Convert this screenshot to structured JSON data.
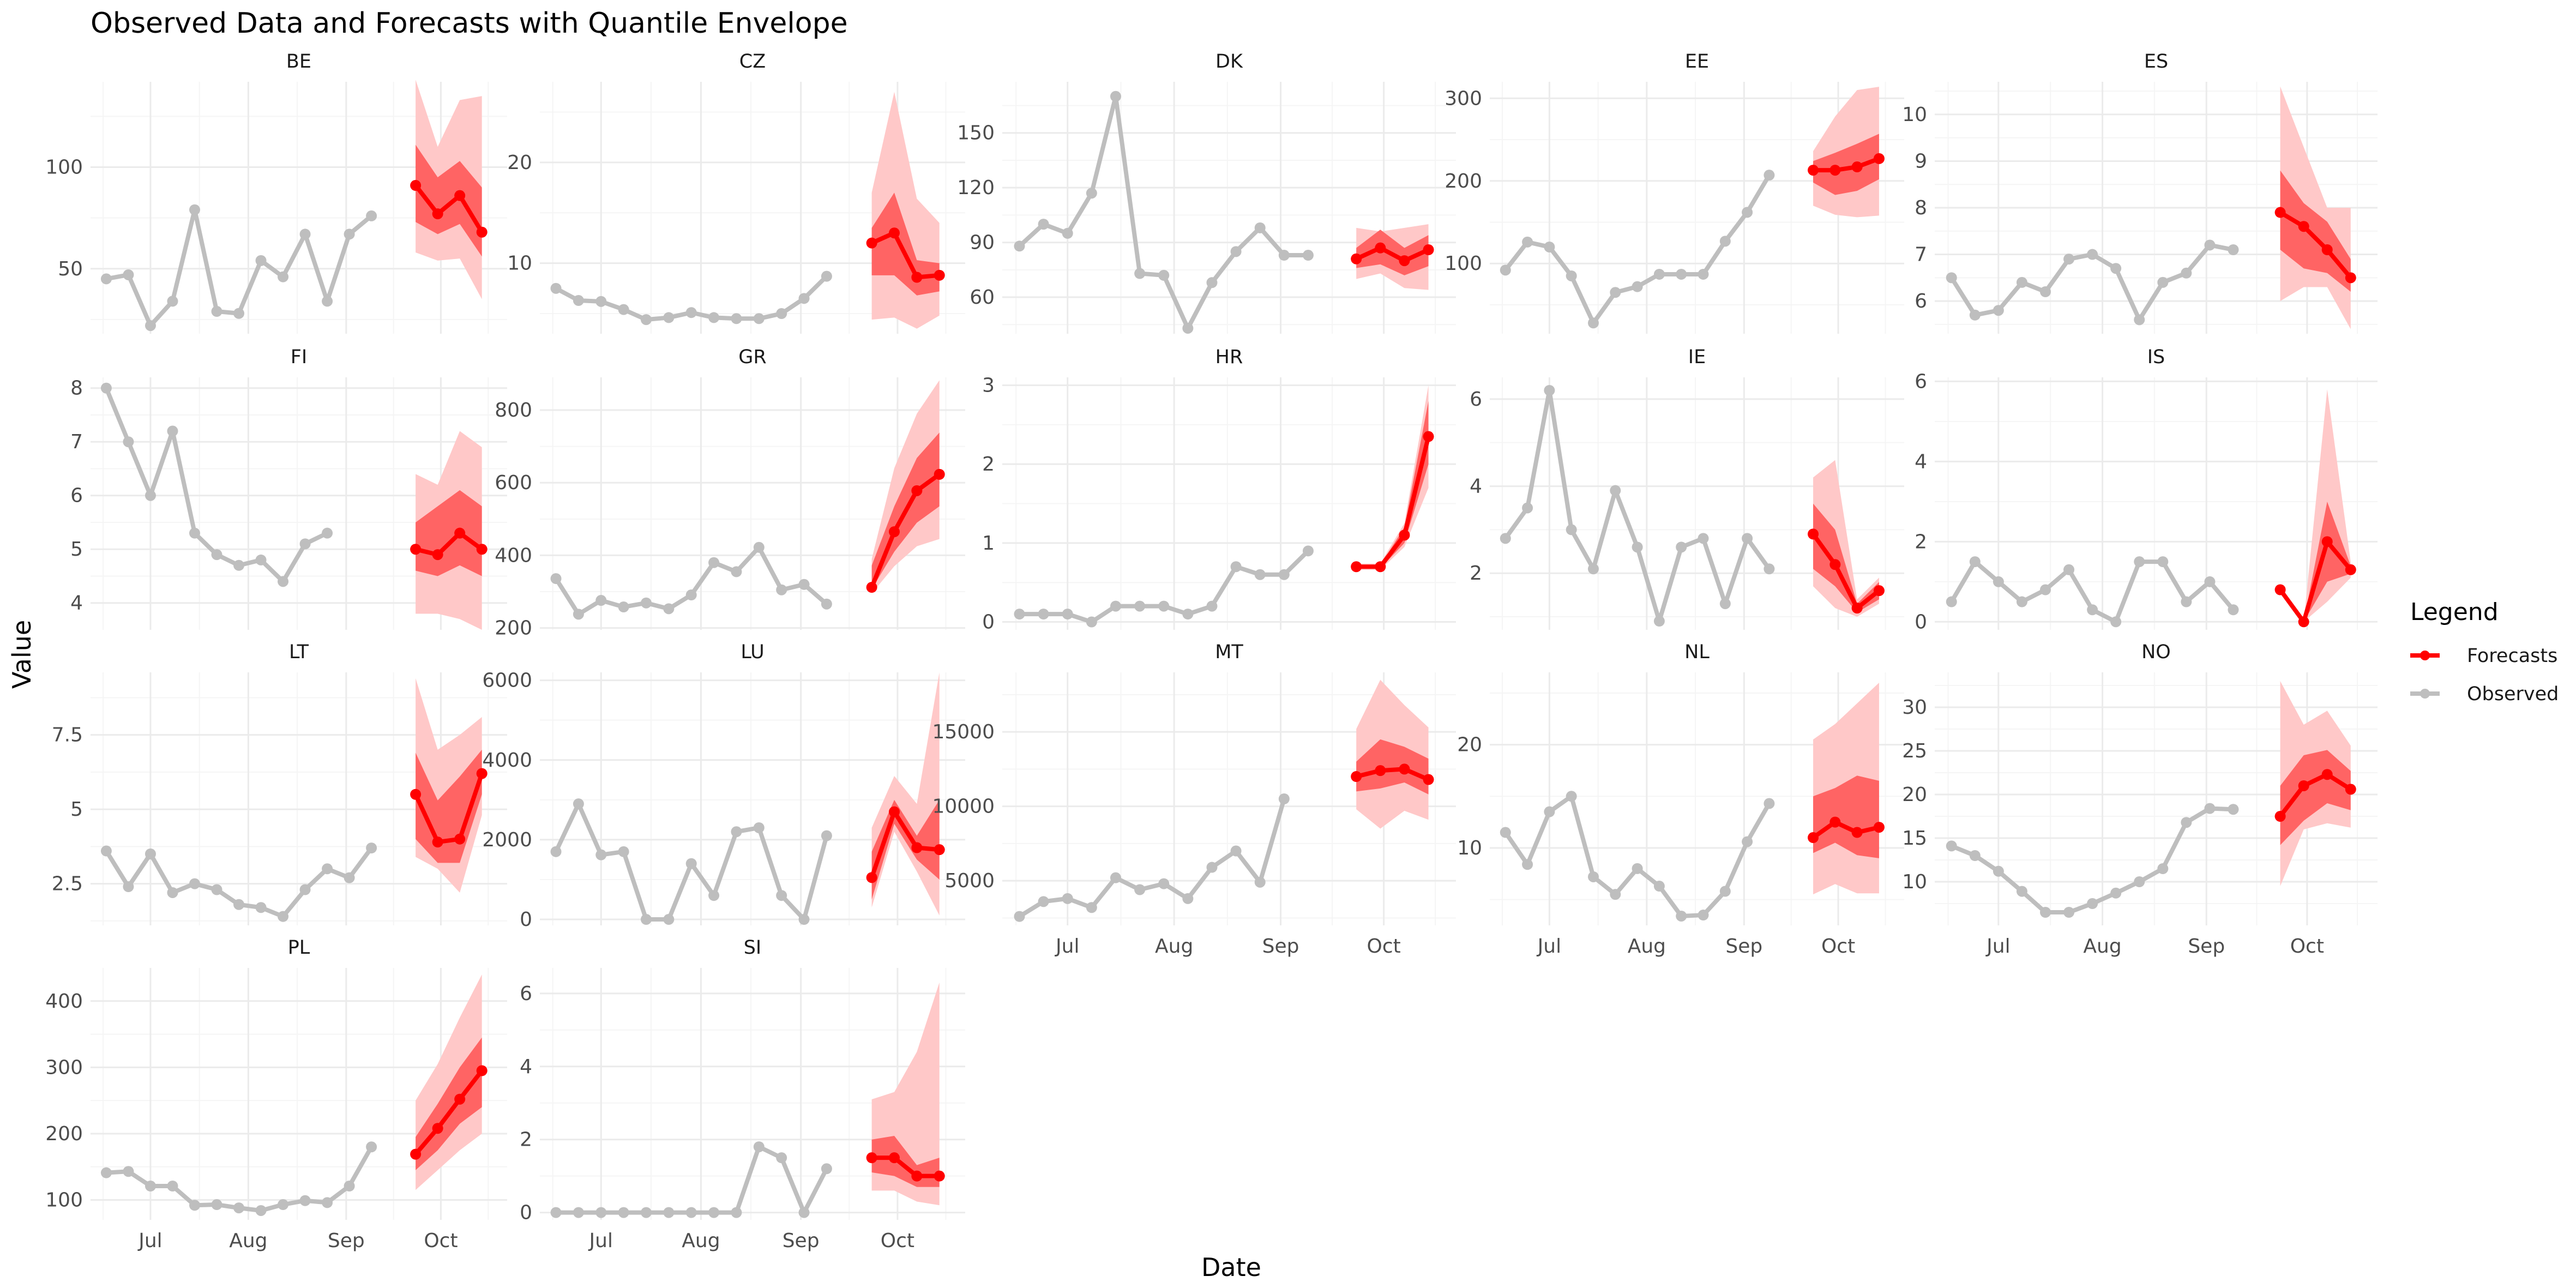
{
  "chart_data": {
    "type": "line",
    "title": "Observed Data and Forecasts with Quantile Envelope",
    "xlabel": "Date",
    "ylabel": "Value",
    "x_tick_labels": [
      "Jul",
      "Aug",
      "Sep",
      "Oct"
    ],
    "x_ticks": [
      "2023-07-01",
      "2023-08-01",
      "2023-09-01",
      "2023-10-01"
    ],
    "x_range": [
      "2023-06-12",
      "2023-10-22"
    ],
    "observed_dates": [
      "2023-06-17",
      "2023-06-24",
      "2023-07-01",
      "2023-07-08",
      "2023-07-15",
      "2023-07-22",
      "2023-07-29",
      "2023-08-05",
      "2023-08-12",
      "2023-08-19",
      "2023-08-26",
      "2023-09-02",
      "2023-09-09",
      "2023-09-16"
    ],
    "forecast_dates": [
      "2023-09-23",
      "2023-09-30",
      "2023-10-07",
      "2023-10-14"
    ],
    "legend": {
      "title": "Legend",
      "position": "right",
      "entries": [
        {
          "label": "Forecasts",
          "color": "#FF0000"
        },
        {
          "label": "Observed",
          "color": "#BEBEBE"
        }
      ]
    },
    "colors": {
      "observed": "#BEBEBE",
      "forecast": "#FF0000",
      "inner_band": "#FF6464",
      "outer_band": "#FFC8C8",
      "grid_major": "#EBEBEB",
      "grid_minor": "#F5F5F5"
    },
    "panels": [
      {
        "name": "BE",
        "ylim": [
          18,
          142
        ],
        "yticks": [
          50,
          100
        ],
        "observed": [
          45,
          47,
          22,
          34,
          79,
          29,
          28,
          54,
          46,
          67,
          34,
          67,
          76
        ],
        "forecast": {
          "median": [
            91,
            77,
            86,
            68
          ],
          "q_inner_low": [
            73,
            67,
            72,
            56
          ],
          "q_inner_high": [
            111,
            95,
            103,
            90
          ],
          "q_outer_low": [
            58,
            54,
            55,
            35
          ],
          "q_outer_high": [
            143,
            110,
            133,
            135
          ]
        }
      },
      {
        "name": "CZ",
        "ylim": [
          3,
          28
        ],
        "yticks": [
          10,
          20
        ],
        "observed": [
          7.5,
          6.3,
          6.2,
          5.4,
          4.4,
          4.6,
          5.1,
          4.6,
          4.5,
          4.5,
          5.0,
          6.5,
          8.7
        ],
        "forecast": {
          "median": [
            12,
            13,
            8.6,
            8.8
          ],
          "q_inner_low": [
            8.8,
            8.8,
            6.8,
            7.2
          ],
          "q_inner_high": [
            13.5,
            17,
            10.3,
            10
          ],
          "q_outer_low": [
            4.4,
            4.6,
            3.5,
            4.8
          ],
          "q_outer_high": [
            17,
            27,
            16.4,
            14
          ]
        }
      },
      {
        "name": "DK",
        "ylim": [
          40,
          178
        ],
        "yticks": [
          60,
          90,
          120,
          150
        ],
        "observed": [
          88,
          100,
          95,
          117,
          170,
          73,
          72,
          43,
          68,
          85,
          98,
          83,
          83
        ],
        "forecast": {
          "median": [
            81,
            87,
            80,
            86
          ],
          "q_inner_low": [
            76,
            78,
            72,
            77
          ],
          "q_inner_high": [
            87,
            97,
            87,
            94
          ],
          "q_outer_low": [
            70,
            73,
            65,
            64
          ],
          "q_outer_high": [
            98,
            96,
            98,
            100
          ]
        }
      },
      {
        "name": "EE",
        "ylim": [
          15,
          320
        ],
        "yticks": [
          100,
          200,
          300
        ],
        "observed": [
          92,
          126,
          120,
          85,
          28,
          65,
          72,
          87,
          87,
          87,
          127,
          162,
          207
        ],
        "forecast": {
          "median": [
            213,
            213,
            217,
            227
          ],
          "q_inner_low": [
            198,
            183,
            188,
            202
          ],
          "q_inner_high": [
            224,
            234,
            245,
            257
          ],
          "q_outer_low": [
            170,
            159,
            156,
            158
          ],
          "q_outer_high": [
            236,
            278,
            310,
            314
          ]
        }
      },
      {
        "name": "ES",
        "ylim": [
          5.3,
          10.7
        ],
        "yticks": [
          6,
          7,
          8,
          9,
          10
        ],
        "observed": [
          6.5,
          5.7,
          5.8,
          6.4,
          6.2,
          6.9,
          7.0,
          6.7,
          5.6,
          6.4,
          6.6,
          7.2,
          7.1
        ],
        "forecast": {
          "median": [
            7.9,
            7.6,
            7.1,
            6.5
          ],
          "q_inner_low": [
            7.1,
            6.7,
            6.6,
            6.2
          ],
          "q_inner_high": [
            8.8,
            8.1,
            7.7,
            6.9
          ],
          "q_outer_low": [
            6.0,
            6.3,
            6.3,
            5.4
          ],
          "q_outer_high": [
            10.6,
            9.3,
            8.0,
            8.0
          ]
        }
      },
      {
        "name": "FI",
        "ylim": [
          3.5,
          8.2
        ],
        "yticks": [
          4,
          5,
          6,
          7,
          8
        ],
        "observed": [
          8.0,
          7.0,
          6.0,
          7.2,
          5.3,
          4.9,
          4.7,
          4.8,
          4.4,
          5.1,
          5.3
        ],
        "forecast": {
          "median": [
            5.0,
            4.9,
            5.3,
            5.0
          ],
          "q_inner_low": [
            4.6,
            4.5,
            4.7,
            4.5
          ],
          "q_inner_high": [
            5.5,
            5.8,
            6.1,
            5.8
          ],
          "q_outer_low": [
            3.8,
            3.8,
            3.7,
            3.5
          ],
          "q_outer_high": [
            6.4,
            6.2,
            7.2,
            6.9
          ]
        }
      },
      {
        "name": "GR",
        "ylim": [
          195,
          890
        ],
        "yticks": [
          200,
          400,
          600,
          800
        ],
        "observed": [
          336,
          238,
          276,
          258,
          269,
          253,
          291,
          380,
          355,
          422,
          305,
          320,
          266
        ],
        "forecast": {
          "median": [
            312,
            465,
            578,
            623
          ],
          "q_inner_low": [
            307,
            410,
            490,
            535
          ],
          "q_inner_high": [
            372,
            535,
            668,
            738
          ],
          "q_outer_low": [
            295,
            370,
            425,
            445
          ],
          "q_outer_high": [
            390,
            640,
            790,
            882
          ]
        }
      },
      {
        "name": "HR",
        "ylim": [
          -0.1,
          3.1
        ],
        "yticks": [
          0,
          1,
          2,
          3
        ],
        "observed": [
          0.1,
          0.1,
          0.1,
          0.0,
          0.2,
          0.2,
          0.2,
          0.1,
          0.2,
          0.7,
          0.6,
          0.6,
          0.9
        ],
        "forecast": {
          "median": [
            0.7,
            0.7,
            1.1,
            2.35
          ],
          "q_inner_low": [
            0.68,
            0.68,
            1.0,
            2.0
          ],
          "q_inner_high": [
            0.72,
            0.72,
            1.2,
            2.8
          ],
          "q_outer_low": [
            0.66,
            0.66,
            0.95,
            1.7
          ],
          "q_outer_high": [
            0.74,
            0.74,
            1.25,
            3.0
          ]
        }
      },
      {
        "name": "IE",
        "ylim": [
          0.7,
          6.5
        ],
        "yticks": [
          2,
          4,
          6
        ],
        "observed": [
          2.8,
          3.5,
          6.2,
          3.0,
          2.1,
          3.9,
          2.6,
          0.9,
          2.6,
          2.8,
          1.3,
          2.8,
          2.1
        ],
        "forecast": {
          "median": [
            2.9,
            2.2,
            1.2,
            1.6
          ],
          "q_inner_low": [
            2.1,
            1.7,
            1.1,
            1.4
          ],
          "q_inner_high": [
            3.6,
            3.0,
            1.3,
            1.8
          ],
          "q_outer_low": [
            1.7,
            1.2,
            1.0,
            1.3
          ],
          "q_outer_high": [
            4.2,
            4.6,
            1.4,
            1.9
          ]
        }
      },
      {
        "name": "IS",
        "ylim": [
          -0.2,
          6.1
        ],
        "yticks": [
          0,
          2,
          4,
          6
        ],
        "observed": [
          0.5,
          1.5,
          1.0,
          0.5,
          0.8,
          1.3,
          0.3,
          0.0,
          1.5,
          1.5,
          0.5,
          1.0,
          0.3
        ],
        "forecast": {
          "median": [
            0.8,
            0.0,
            2.0,
            1.3
          ],
          "q_inner_low": [
            0.8,
            0.0,
            1.0,
            1.2
          ],
          "q_inner_high": [
            0.8,
            0.0,
            3.0,
            1.4
          ],
          "q_outer_low": [
            0.8,
            0.0,
            0.5,
            1.1
          ],
          "q_outer_high": [
            0.8,
            0.0,
            5.8,
            1.5
          ]
        }
      },
      {
        "name": "LT",
        "ylim": [
          1.1,
          9.6
        ],
        "yticks": [
          2.5,
          5.0,
          7.5
        ],
        "observed": [
          3.6,
          2.4,
          3.5,
          2.2,
          2.5,
          2.3,
          1.8,
          1.7,
          1.4,
          2.3,
          3.0,
          2.7,
          3.7
        ],
        "forecast": {
          "median": [
            5.5,
            3.9,
            4.0,
            6.2
          ],
          "q_inner_low": [
            4.0,
            3.2,
            3.2,
            5.5
          ],
          "q_inner_high": [
            6.9,
            5.3,
            6.1,
            7.0
          ],
          "q_outer_low": [
            3.4,
            3.0,
            2.2,
            4.8
          ],
          "q_outer_high": [
            9.4,
            7.0,
            7.5,
            8.1
          ]
        }
      },
      {
        "name": "LU",
        "ylim": [
          -150,
          6200
        ],
        "yticks": [
          0,
          2000,
          4000,
          6000
        ],
        "observed": [
          1700,
          2900,
          1620,
          1700,
          0,
          0,
          1400,
          600,
          2200,
          2300,
          600,
          0,
          2100
        ],
        "forecast": {
          "median": [
            1050,
            2700,
            1800,
            1750
          ],
          "q_inner_low": [
            500,
            2400,
            1500,
            1000
          ],
          "q_inner_high": [
            1700,
            3000,
            2100,
            3000
          ],
          "q_outer_low": [
            300,
            2200,
            1200,
            100
          ],
          "q_outer_high": [
            2300,
            3600,
            2900,
            6200
          ]
        }
      },
      {
        "name": "MT",
        "ylim": [
          2000,
          19000
        ],
        "yticks": [
          5000,
          10000,
          15000
        ],
        "observed": [
          2600,
          3600,
          3800,
          3200,
          5200,
          4400,
          4800,
          3800,
          5900,
          7000,
          4900,
          10500
        ],
        "forecast": {
          "median": [
            12000,
            12400,
            12500,
            11800
          ],
          "q_inner_low": [
            11000,
            11200,
            11600,
            10800
          ],
          "q_inner_high": [
            13000,
            14500,
            14000,
            13200
          ],
          "q_outer_low": [
            9800,
            8500,
            9700,
            9100
          ],
          "q_outer_high": [
            15200,
            18500,
            16800,
            15300
          ]
        }
      },
      {
        "name": "NL",
        "ylim": [
          2.5,
          27
        ],
        "yticks": [
          10,
          20
        ],
        "observed": [
          11.5,
          8.4,
          13.5,
          15,
          7.2,
          5.5,
          8,
          6.3,
          3.4,
          3.5,
          5.8,
          10.6,
          14.3
        ],
        "forecast": {
          "median": [
            11,
            12.5,
            11.5,
            12
          ],
          "q_inner_low": [
            9.5,
            10.5,
            9.3,
            9
          ],
          "q_inner_high": [
            15,
            15.8,
            17,
            16.5
          ],
          "q_outer_low": [
            5.5,
            6.5,
            5.6,
            5.6
          ],
          "q_outer_high": [
            20.5,
            22,
            24,
            26
          ]
        }
      },
      {
        "name": "NO",
        "ylim": [
          5,
          34
        ],
        "yticks": [
          10,
          15,
          20,
          25,
          30
        ],
        "observed": [
          14.1,
          13,
          11.2,
          8.9,
          6.5,
          6.5,
          7.5,
          8.7,
          10,
          11.5,
          16.8,
          18.4,
          18.3
        ],
        "forecast": {
          "median": [
            17.5,
            21,
            22.3,
            20.6
          ],
          "q_inner_low": [
            14.2,
            17,
            19,
            18.2
          ],
          "q_inner_high": [
            21,
            24.5,
            25.1,
            22.7
          ],
          "q_outer_low": [
            9.5,
            16,
            16.7,
            16.2
          ],
          "q_outer_high": [
            33,
            28,
            29.6,
            25.6
          ]
        }
      },
      {
        "name": "PL",
        "ylim": [
          70,
          450
        ],
        "yticks": [
          100,
          200,
          300,
          400
        ],
        "observed": [
          141,
          143,
          121,
          121,
          92,
          93,
          88,
          84,
          93,
          99,
          96,
          121,
          180
        ],
        "forecast": {
          "median": [
            169,
            208,
            252,
            295
          ],
          "q_inner_low": [
            145,
            175,
            215,
            240
          ],
          "q_inner_high": [
            195,
            245,
            300,
            345
          ],
          "q_outer_low": [
            115,
            145,
            175,
            200
          ],
          "q_outer_high": [
            250,
            305,
            375,
            440
          ]
        }
      },
      {
        "name": "SI",
        "ylim": [
          -0.2,
          6.7
        ],
        "yticks": [
          0,
          2,
          4,
          6
        ],
        "observed": [
          0,
          0,
          0,
          0,
          0,
          0,
          0,
          0,
          0,
          1.8,
          1.5,
          0,
          1.2
        ],
        "forecast": {
          "median": [
            1.5,
            1.5,
            1.0,
            1.0
          ],
          "q_inner_low": [
            1.1,
            1.0,
            0.7,
            0.7
          ],
          "q_inner_high": [
            2.0,
            2.1,
            1.3,
            1.5
          ],
          "q_outer_low": [
            0.6,
            0.6,
            0.3,
            0.2
          ],
          "q_outer_high": [
            3.1,
            3.3,
            4.4,
            6.3
          ]
        }
      }
    ]
  }
}
